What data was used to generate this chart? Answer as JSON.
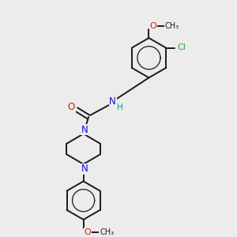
{
  "background_color": "#ececec",
  "bond_color": "#1a1a1a",
  "N_color": "#1010dd",
  "O_color": "#cc2200",
  "Cl_color": "#22aa22",
  "H_color": "#009999",
  "figsize": [
    3.0,
    3.0
  ],
  "dpi": 100,
  "xlim": [
    0,
    10
  ],
  "ylim": [
    0,
    10
  ]
}
